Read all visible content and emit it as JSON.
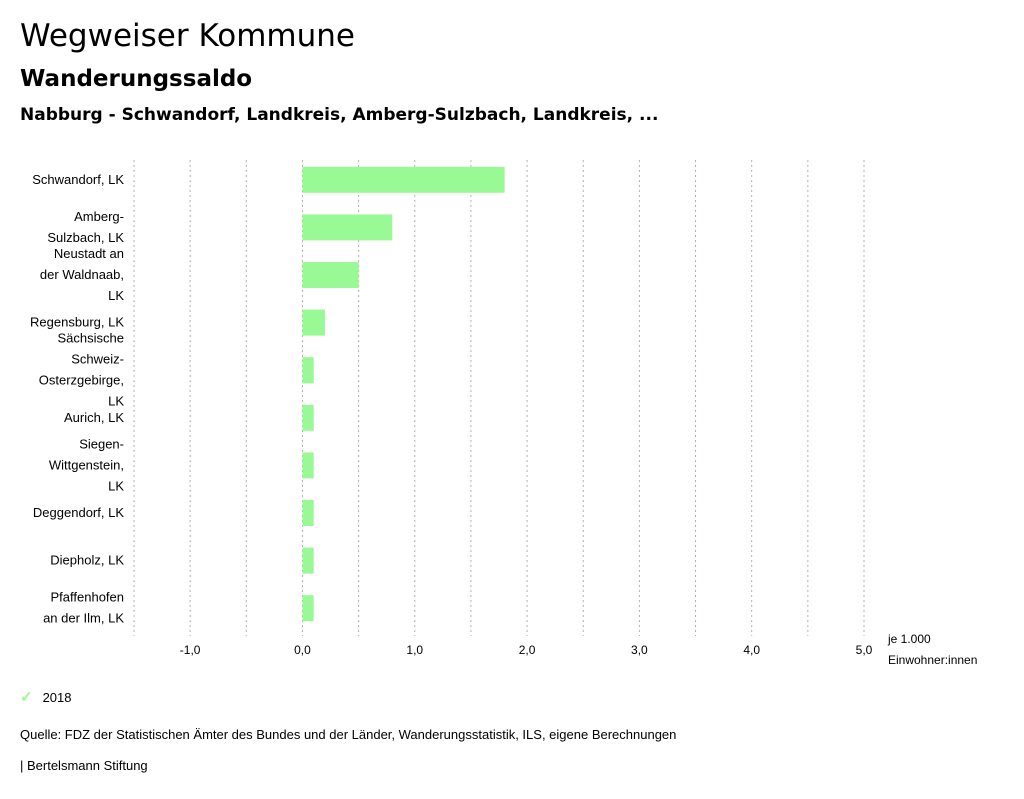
{
  "header": {
    "title": "Wegweiser Kommune",
    "subtitle": "Wanderungssaldo",
    "region": "Nabburg - Schwandorf, Landkreis, Amberg-Sulzbach, Landkreis, ..."
  },
  "colors": {
    "bar": "#99f994",
    "grid": "#b0b0b0"
  },
  "chart_data": {
    "type": "bar",
    "orientation": "horizontal",
    "categories": [
      [
        "Schwandorf, LK"
      ],
      [
        "Amberg-",
        "Sulzbach, LK"
      ],
      [
        "Neustadt an",
        "der Waldnaab,",
        "LK"
      ],
      [
        "Regensburg, LK"
      ],
      [
        "Sächsische",
        "Schweiz-",
        "Osterzgebirge,",
        "LK"
      ],
      [
        "Aurich, LK"
      ],
      [
        "Siegen-",
        "Wittgenstein,",
        "LK"
      ],
      [
        "Deggendorf, LK"
      ],
      [
        "Diepholz, LK"
      ],
      [
        "Pfaffenhofen",
        "an der Ilm, LK"
      ]
    ],
    "series": [
      {
        "name": "2018",
        "values": [
          1.8,
          0.8,
          0.5,
          0.2,
          0.1,
          0.1,
          0.1,
          0.1,
          0.1,
          0.1
        ]
      }
    ],
    "xlim": [
      -1.5,
      5.0
    ],
    "ticks": [
      -1.0,
      0.0,
      1.0,
      2.0,
      3.0,
      4.0,
      5.0
    ],
    "tick_labels": [
      "-1,0",
      "0,0",
      "1,0",
      "2,0",
      "3,0",
      "4,0",
      "5,0"
    ],
    "unit_label": [
      "je 1.000",
      "Einwohner:innen"
    ],
    "grid": true
  },
  "legend": {
    "label": "2018"
  },
  "footer": {
    "source": "Quelle: FDZ der Statistischen Ämter des Bundes und der Länder, Wanderungsstatistik, ILS, eigene Berechnungen",
    "brand": "| Bertelsmann Stiftung"
  }
}
